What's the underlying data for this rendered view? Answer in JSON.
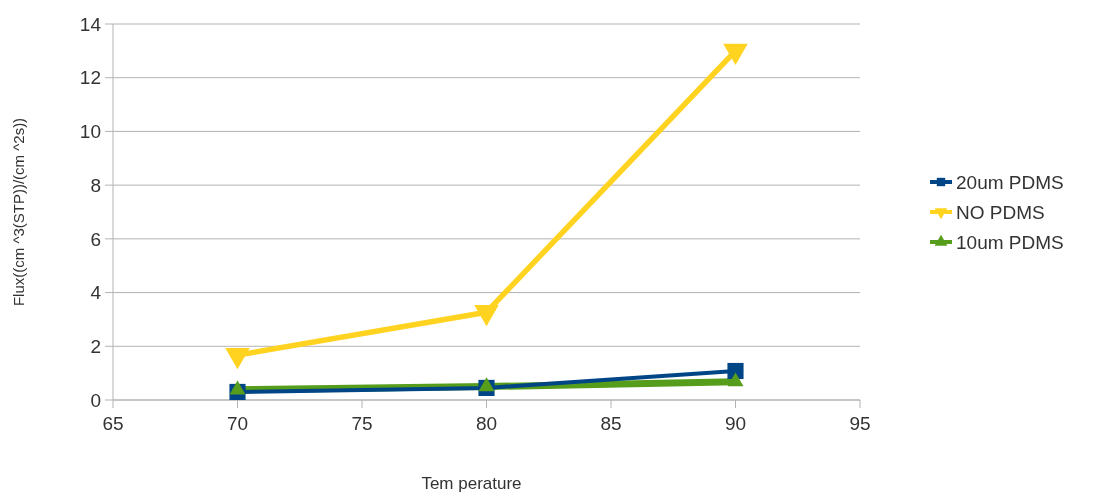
{
  "chart_data": {
    "type": "line",
    "xlabel": "Tem perature",
    "ylabel": "Flux((cm ^3(STP))/(cm ^2s))",
    "x": [
      70,
      80,
      90
    ],
    "xlim": [
      65,
      95
    ],
    "xticks": [
      65,
      70,
      75,
      80,
      85,
      90,
      95
    ],
    "ylim": [
      0,
      14
    ],
    "yticks": [
      0,
      2,
      4,
      6,
      8,
      10,
      12,
      14
    ],
    "grid": "y",
    "legend": "right",
    "series": [
      {
        "name": "20um PDMS",
        "color": "#004586",
        "marker": "square",
        "values": [
          0.3,
          0.45,
          1.08
        ]
      },
      {
        "name": "NO PDMS",
        "color": "#ffd320",
        "marker": "triangle-down",
        "values": [
          1.67,
          3.27,
          13.0
        ]
      },
      {
        "name": "10um PDMS",
        "color": "#579d1c",
        "marker": "triangle",
        "values": [
          0.38,
          0.5,
          0.68
        ]
      }
    ]
  }
}
